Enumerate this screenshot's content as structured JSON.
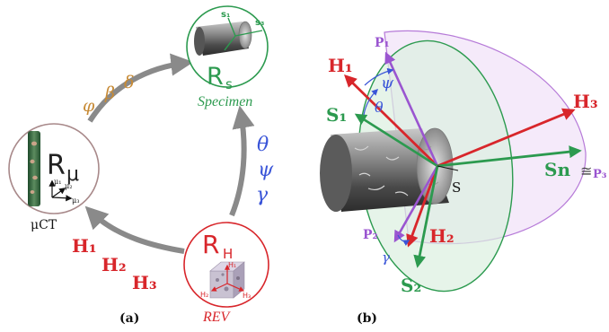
{
  "colors": {
    "red": "#d8262b",
    "green": "#2c9a4f",
    "purple": "#9a55d0",
    "blue": "#3a55d8",
    "orange": "#c78a35",
    "gray": "#8a8a8a",
    "mu_circle": "#a8898a"
  },
  "panel_a": {
    "caption": "(a)",
    "mu_node": {
      "symbol": "R",
      "subscript": "μ",
      "label": "μCT",
      "axes": [
        "μ₁",
        "μ₂",
        "μ₃"
      ]
    },
    "s_node": {
      "symbol": "R",
      "subscript": "s",
      "label": "Specimen",
      "axes": [
        "s₁",
        "s₃"
      ]
    },
    "h_node": {
      "symbol": "R",
      "subscript": "H",
      "label": "REV",
      "axes": [
        "H₁",
        "H₂",
        "H₃"
      ]
    },
    "top_left_arrow": {
      "labels": [
        "φ",
        "β",
        "δ"
      ]
    },
    "right_arrow": {
      "labels": [
        "θ",
        "ψ",
        "γ"
      ]
    },
    "bottom_arrow": {
      "labels": [
        "H₁",
        "H₂",
        "H₃"
      ]
    }
  },
  "panel_b": {
    "caption": "(b)",
    "vectors": {
      "h1": "H₁",
      "h2": "H₂",
      "h3": "H₃",
      "s1": "S₁",
      "s2": "S₂",
      "sn": "Sn",
      "p1": "P₁",
      "p2": "P₂",
      "p3": "P₃",
      "approx": "≅",
      "s_axis": "S"
    },
    "angles": {
      "psi": "ψ",
      "theta": "θ",
      "gamma": "γ"
    }
  }
}
